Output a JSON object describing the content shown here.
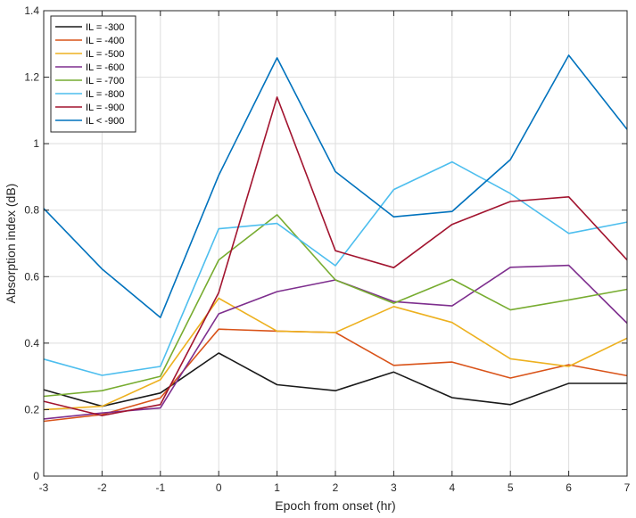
{
  "chart_data": {
    "type": "line",
    "title": "",
    "xlabel": "Epoch from onset (hr)",
    "ylabel": "Absorption index (dB)",
    "x": [
      -3,
      -2,
      -1,
      0,
      1,
      2,
      3,
      4,
      5,
      6,
      7
    ],
    "xlim": [
      -3,
      7
    ],
    "ylim": [
      0,
      1.4
    ],
    "xticks": [
      "-3",
      "-2",
      "-1",
      "0",
      "1",
      "2",
      "3",
      "4",
      "5",
      "6",
      "7"
    ],
    "yticks": [
      "0",
      "0.2",
      "0.4",
      "0.6",
      "0.8",
      "1",
      "1.2",
      "1.4"
    ],
    "grid": true,
    "legend_position": "top-left",
    "series": [
      {
        "name": "IL = -300",
        "color": "#1a1a1a",
        "values": [
          0.26,
          0.21,
          0.25,
          0.37,
          0.275,
          0.257,
          0.313,
          0.236,
          0.215,
          0.279,
          0.279
        ]
      },
      {
        "name": "IL = -400",
        "color": "#d95319",
        "values": [
          0.165,
          0.185,
          0.235,
          0.442,
          0.436,
          0.432,
          0.333,
          0.343,
          0.295,
          0.335,
          0.302
        ]
      },
      {
        "name": "IL = -500",
        "color": "#edb120",
        "values": [
          0.2,
          0.21,
          0.29,
          0.535,
          0.436,
          0.432,
          0.51,
          0.462,
          0.353,
          0.33,
          0.415
        ]
      },
      {
        "name": "IL = -600",
        "color": "#7e2f8e",
        "values": [
          0.172,
          0.19,
          0.205,
          0.488,
          0.555,
          0.59,
          0.525,
          0.512,
          0.628,
          0.634,
          0.46
        ]
      },
      {
        "name": "IL = -700",
        "color": "#77ac30",
        "values": [
          0.24,
          0.257,
          0.3,
          0.65,
          0.786,
          0.59,
          0.52,
          0.592,
          0.5,
          0.53,
          0.562
        ]
      },
      {
        "name": "IL = -800",
        "color": "#4dbeee",
        "values": [
          0.352,
          0.303,
          0.33,
          0.744,
          0.76,
          0.633,
          0.862,
          0.945,
          0.85,
          0.73,
          0.764
        ]
      },
      {
        "name": "IL = -900",
        "color": "#a2142f",
        "values": [
          0.225,
          0.182,
          0.215,
          0.552,
          1.14,
          0.678,
          0.627,
          0.757,
          0.826,
          0.84,
          0.65
        ]
      },
      {
        "name": "IL < -900",
        "color": "#0072bd",
        "values": [
          0.805,
          0.623,
          0.477,
          0.905,
          1.258,
          0.916,
          0.78,
          0.796,
          0.952,
          1.266,
          1.043
        ]
      }
    ]
  }
}
